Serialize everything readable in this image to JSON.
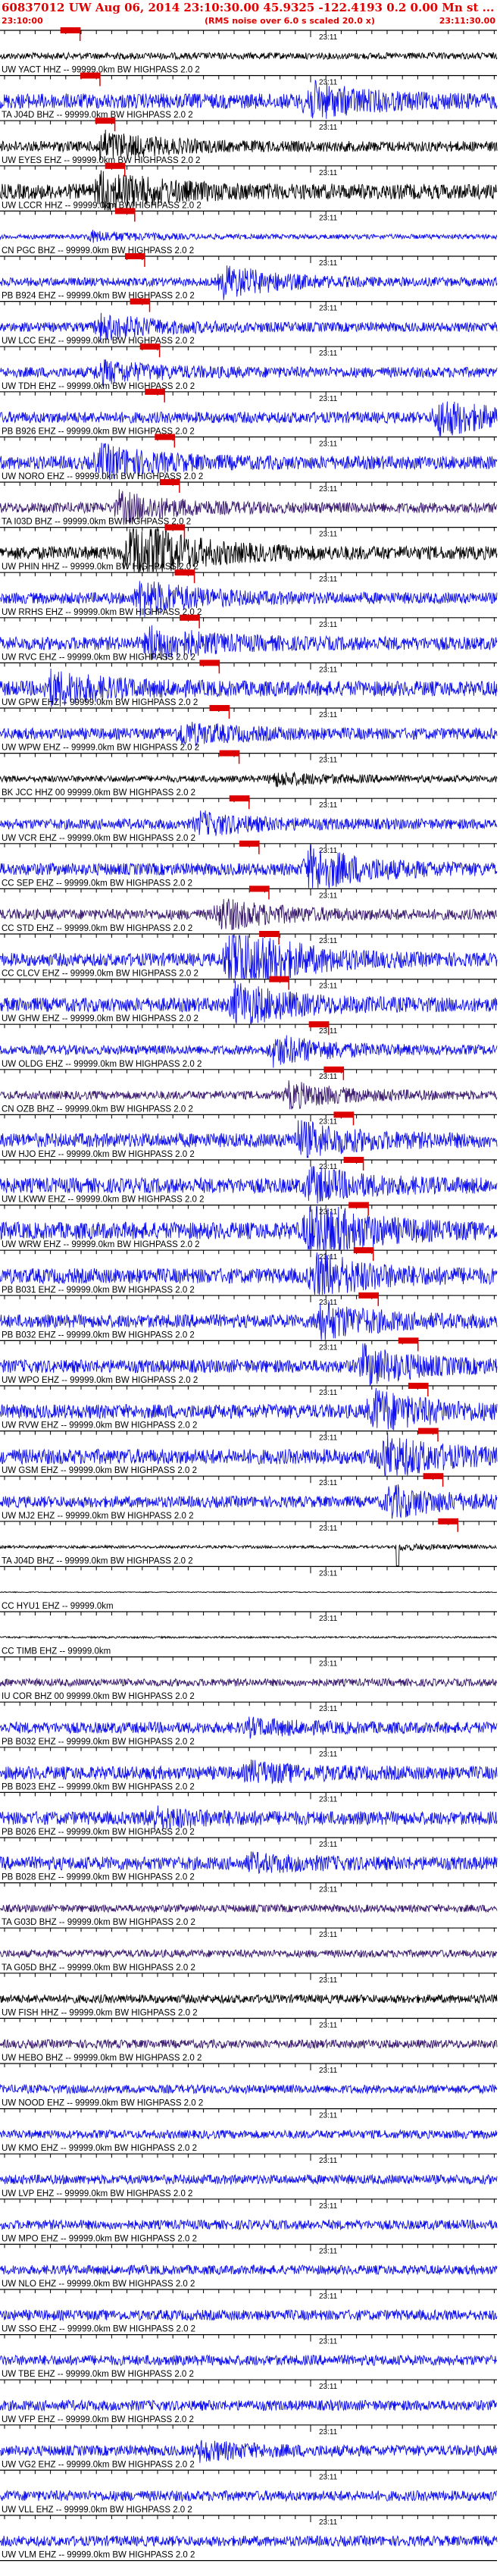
{
  "header": {
    "title": "60837012 UW Aug 06, 2014 23:10:30.00   45.9325  -122.4193   0.2 0.00 Mn st ...",
    "start_time": "23:10:00",
    "noise_note": "(RMS noise over 6.0 s scaled 20.0 x)",
    "end_time": "23:11:30.00"
  },
  "chart_data": {
    "type": "seismogram-record-section",
    "minute_mark_label": "23:11",
    "colors": {
      "pick": "#dd0000",
      "header": "#e00000",
      "blue": "#1010ee",
      "black": "#000000",
      "purple": "#3a1a6e",
      "gray": "#7a7a7a"
    },
    "traces": [
      {
        "label": "UW YACT HHZ -- 99999.0km BW  HIGHPASS  2.0  2",
        "color": "black",
        "amp": 0.35,
        "pick": 0.03,
        "event": 0.18,
        "burst": 0.0
      },
      {
        "label": "TA J04D BHZ -- 99999.0km BW  HIGHPASS  2.0  2",
        "color": "blue",
        "amp": 0.8,
        "pick": 0.07,
        "event": 0.62,
        "burst": 1.6
      },
      {
        "label": "UW EYES EHZ -- 99999.0km BW  HIGHPASS  2.0  2",
        "color": "black",
        "amp": 0.55,
        "pick": 0.1,
        "event": 0.2,
        "burst": 1.4
      },
      {
        "label": "UW LCCR HHZ -- 99999.0km BW  HIGHPASS  2.0  2",
        "color": "black",
        "amp": 0.8,
        "pick": 0.12,
        "event": 0.2,
        "burst": 2.0
      },
      {
        "label": "CN PGC BHZ -- 99999.0km BW  HIGHPASS  2.0  2",
        "color": "blue",
        "amp": 0.25,
        "pick": 0.14,
        "event": 0.18,
        "burst": 0.5
      },
      {
        "label": "PB B924 EHZ -- 99999.0km BW  HIGHPASS  2.0  2",
        "color": "blue",
        "amp": 0.45,
        "pick": 0.16,
        "event": 0.45,
        "burst": 1.6
      },
      {
        "label": "UW LCC EHZ -- 99999.0km BW  HIGHPASS  2.0  2",
        "color": "blue",
        "amp": 0.5,
        "pick": 0.17,
        "event": 0.2,
        "burst": 1.2
      },
      {
        "label": "UW TDH EHZ -- 99999.0km BW  HIGHPASS  2.0  2",
        "color": "blue",
        "amp": 0.55,
        "pick": 0.19,
        "event": 0.2,
        "burst": 1.0
      },
      {
        "label": "PB B926 EHZ -- 99999.0km BW  HIGHPASS  2.0  2",
        "color": "blue",
        "amp": 0.6,
        "pick": 0.2,
        "event": 0.88,
        "burst": 1.8
      },
      {
        "label": "UW NORO EHZ -- 99999.0km BW  HIGHPASS  2.0  2",
        "color": "blue",
        "amp": 0.7,
        "pick": 0.22,
        "event": 0.2,
        "burst": 1.5
      },
      {
        "label": "TA I03D BHZ -- 99999.0km BW  HIGHPASS  2.0  2",
        "color": "purple",
        "amp": 0.55,
        "pick": 0.23,
        "event": 0.24,
        "burst": 1.4
      },
      {
        "label": "UW PHIN HHZ -- 99999.0km BW  HIGHPASS  2.0  2",
        "color": "black",
        "amp": 0.7,
        "pick": 0.24,
        "event": 0.26,
        "burst": 3.5
      },
      {
        "label": "UW RRHS EHZ -- 99999.0km BW  HIGHPASS  2.0  2",
        "color": "blue",
        "amp": 0.6,
        "pick": 0.26,
        "event": 0.28,
        "burst": 1.8
      },
      {
        "label": "UW RVC EHZ -- 99999.0km BW  HIGHPASS  2.0  2",
        "color": "blue",
        "amp": 0.7,
        "pick": 0.27,
        "event": 0.3,
        "burst": 1.6
      },
      {
        "label": "UW GPW EHZ -- 99999.0km BW  HIGHPASS  2.0  2",
        "color": "blue",
        "amp": 0.8,
        "pick": 0.31,
        "event": 0.1,
        "burst": 1.5
      },
      {
        "label": "UW WPW EHZ -- 99999.0km BW  HIGHPASS  2.0  2",
        "color": "blue",
        "amp": 0.6,
        "pick": 0.33,
        "event": 0.36,
        "burst": 1.0
      },
      {
        "label": "BK JCC HHZ 00 99999.0km BW  HIGHPASS  2.0  2",
        "color": "black",
        "amp": 0.35,
        "pick": 0.35,
        "event": 0.55,
        "burst": 0.6
      },
      {
        "label": "UW VCR EHZ -- 99999.0km BW  HIGHPASS  2.0  2",
        "color": "blue",
        "amp": 0.55,
        "pick": 0.37,
        "event": 0.4,
        "burst": 1.0
      },
      {
        "label": "CC SEP EHZ -- 99999.0km BW  HIGHPASS  2.0  2",
        "color": "blue",
        "amp": 0.65,
        "pick": 0.39,
        "event": 0.62,
        "burst": 2.2
      },
      {
        "label": "CC STD EHZ -- 99999.0km BW  HIGHPASS  2.0  2",
        "color": "purple",
        "amp": 0.55,
        "pick": 0.41,
        "event": 0.44,
        "burst": 1.5
      },
      {
        "label": "CC CLCV EHZ -- 99999.0km BW  HIGHPASS  2.0  2",
        "color": "blue",
        "amp": 0.7,
        "pick": 0.43,
        "event": 0.46,
        "burst": 4.2
      },
      {
        "label": "UW GHW EHZ -- 99999.0km BW  HIGHPASS  2.0  2",
        "color": "blue",
        "amp": 0.75,
        "pick": 0.45,
        "event": 0.47,
        "burst": 2.0
      },
      {
        "label": "UW OLDG EHZ -- 99999.0km BW  HIGHPASS  2.0  2",
        "color": "blue",
        "amp": 0.5,
        "pick": 0.53,
        "event": 0.55,
        "burst": 1.4
      },
      {
        "label": "CN OZB BHZ -- 99999.0km BW  HIGHPASS  2.0  2",
        "color": "purple",
        "amp": 0.45,
        "pick": 0.56,
        "event": 0.58,
        "burst": 1.2
      },
      {
        "label": "UW HJO EHZ -- 99999.0km BW  HIGHPASS  2.0  2",
        "color": "blue",
        "amp": 0.75,
        "pick": 0.58,
        "event": 0.6,
        "burst": 1.6
      },
      {
        "label": "UW LKWW EHZ -- 99999.0km BW  HIGHPASS  2.0  2",
        "color": "blue",
        "amp": 0.8,
        "pick": 0.6,
        "event": 0.62,
        "burst": 1.5
      },
      {
        "label": "UW WRW EHZ -- 99999.0km BW  HIGHPASS  2.0  2",
        "color": "blue",
        "amp": 0.9,
        "pick": 0.61,
        "event": 0.62,
        "burst": 3.0
      },
      {
        "label": "PB B031 EHZ -- 99999.0km BW  HIGHPASS  2.0  2",
        "color": "blue",
        "amp": 0.8,
        "pick": 0.62,
        "event": 0.63,
        "burst": 2.2
      },
      {
        "label": "PB B032 EHZ -- 99999.0km BW  HIGHPASS  2.0  2",
        "color": "blue",
        "amp": 0.7,
        "pick": 0.63,
        "event": 0.64,
        "burst": 1.8
      },
      {
        "label": "UW WPO EHZ -- 99999.0km BW  HIGHPASS  2.0  2",
        "color": "blue",
        "amp": 0.7,
        "pick": 0.71,
        "event": 0.73,
        "burst": 1.8
      },
      {
        "label": "UW RVW EHZ -- 99999.0km BW  HIGHPASS  2.0  2",
        "color": "blue",
        "amp": 0.75,
        "pick": 0.73,
        "event": 0.75,
        "burst": 2.0
      },
      {
        "label": "UW GSM EHZ -- 99999.0km BW  HIGHPASS  2.0  2",
        "color": "blue",
        "amp": 0.8,
        "pick": 0.75,
        "event": 0.77,
        "burst": 2.0
      },
      {
        "label": "UW MJ2 EHZ -- 99999.0km BW  HIGHPASS  2.0  2",
        "color": "blue",
        "amp": 0.6,
        "pick": 0.76,
        "event": 0.78,
        "burst": 1.5
      },
      {
        "label": "TA J04D BHZ -- 99999.0km BW  HIGHPASS  2.0  2",
        "color": "black",
        "amp": 0.15,
        "pick": 0.79,
        "event": 0.8,
        "burst": 0.3,
        "spike": true
      },
      {
        "label": "CC HYU1 EHZ -- 99999.0km",
        "color": "black",
        "amp": 0.05,
        "pick": null,
        "event": 0.5,
        "burst": 0.0
      },
      {
        "label": "CC TIMB EHZ -- 99999.0km",
        "color": "black",
        "amp": 0.1,
        "pick": null,
        "event": 0.5,
        "burst": 0.0
      },
      {
        "label": "IU COR BHZ 00 99999.0km BW  HIGHPASS  2.0  2",
        "color": "purple",
        "amp": 0.4,
        "pick": null,
        "event": 0.5,
        "burst": 0.0
      },
      {
        "label": "PB B032 EHZ -- 99999.0km BW  HIGHPASS  2.0  2",
        "color": "blue",
        "amp": 0.6,
        "pick": null,
        "event": 0.5,
        "burst": 0.6
      },
      {
        "label": "PB B023 EHZ -- 99999.0km BW  HIGHPASS  2.0  2",
        "color": "blue",
        "amp": 0.7,
        "pick": null,
        "event": 0.5,
        "burst": 0.8
      },
      {
        "label": "PB B026 EHZ -- 99999.0km BW  HIGHPASS  2.0  2",
        "color": "blue",
        "amp": 0.7,
        "pick": null,
        "event": 0.3,
        "burst": 0.8
      },
      {
        "label": "PB B028 EHZ -- 99999.0km BW  HIGHPASS  2.0  2",
        "color": "blue",
        "amp": 0.7,
        "pick": null,
        "event": 0.5,
        "burst": 0.6
      },
      {
        "label": "TA G03D BHZ -- 99999.0km BW  HIGHPASS  2.0  2",
        "color": "purple",
        "amp": 0.4,
        "pick": null,
        "event": 0.5,
        "burst": 0.0
      },
      {
        "label": "TA G05D BHZ -- 99999.0km BW  HIGHPASS  2.0  2",
        "color": "purple",
        "amp": 0.4,
        "pick": null,
        "event": 0.5,
        "burst": 0.0
      },
      {
        "label": "UW FISH HHZ -- 99999.0km BW  HIGHPASS  2.0  2",
        "color": "black",
        "amp": 0.45,
        "pick": null,
        "event": 0.5,
        "burst": 0.0
      },
      {
        "label": "UW HEBO BHZ -- 99999.0km BW  HIGHPASS  2.0  2",
        "color": "purple",
        "amp": 0.45,
        "pick": null,
        "event": 0.5,
        "burst": 0.0
      },
      {
        "label": "UW NOOD EHZ -- 99999.0km BW  HIGHPASS  2.0  2",
        "color": "blue",
        "amp": 0.45,
        "pick": null,
        "event": 0.5,
        "burst": 0.0
      },
      {
        "label": "UW KMO EHZ -- 99999.0km BW  HIGHPASS  2.0  2",
        "color": "blue",
        "amp": 0.45,
        "pick": null,
        "event": 0.5,
        "burst": 0.0
      },
      {
        "label": "UW LVP EHZ -- 99999.0km BW  HIGHPASS  2.0  2",
        "color": "blue",
        "amp": 0.5,
        "pick": null,
        "event": 0.5,
        "burst": 0.0
      },
      {
        "label": "UW MPO EHZ -- 99999.0km BW  HIGHPASS  2.0  2",
        "color": "blue",
        "amp": 0.5,
        "pick": null,
        "event": 0.5,
        "burst": 0.0
      },
      {
        "label": "UW NLO EHZ -- 99999.0km BW  HIGHPASS  2.0  2",
        "color": "blue",
        "amp": 0.5,
        "pick": null,
        "event": 0.5,
        "burst": 0.0
      },
      {
        "label": "UW SSO EHZ -- 99999.0km BW  HIGHPASS  2.0  2",
        "color": "blue",
        "amp": 0.55,
        "pick": null,
        "event": 0.5,
        "burst": 0.0
      },
      {
        "label": "UW TBE EHZ -- 99999.0km BW  HIGHPASS  2.0  2",
        "color": "blue",
        "amp": 0.55,
        "pick": null,
        "event": 0.5,
        "burst": 0.0
      },
      {
        "label": "UW VFP EHZ -- 99999.0km BW  HIGHPASS  2.0  2",
        "color": "blue",
        "amp": 0.55,
        "pick": null,
        "event": 0.5,
        "burst": 0.0
      },
      {
        "label": "UW VG2 EHZ -- 99999.0km BW  HIGHPASS  2.0  2",
        "color": "blue",
        "amp": 0.55,
        "pick": null,
        "event": 0.4,
        "burst": 0.8
      },
      {
        "label": "UW VLL EHZ -- 99999.0km BW  HIGHPASS  2.0  2",
        "color": "blue",
        "amp": 0.55,
        "pick": null,
        "event": 0.5,
        "burst": 0.0
      },
      {
        "label": "UW VLM EHZ -- 99999.0km BW  HIGHPASS  2.0  2",
        "color": "blue",
        "amp": 0.55,
        "pick": null,
        "event": 0.5,
        "burst": 0.0
      }
    ]
  }
}
